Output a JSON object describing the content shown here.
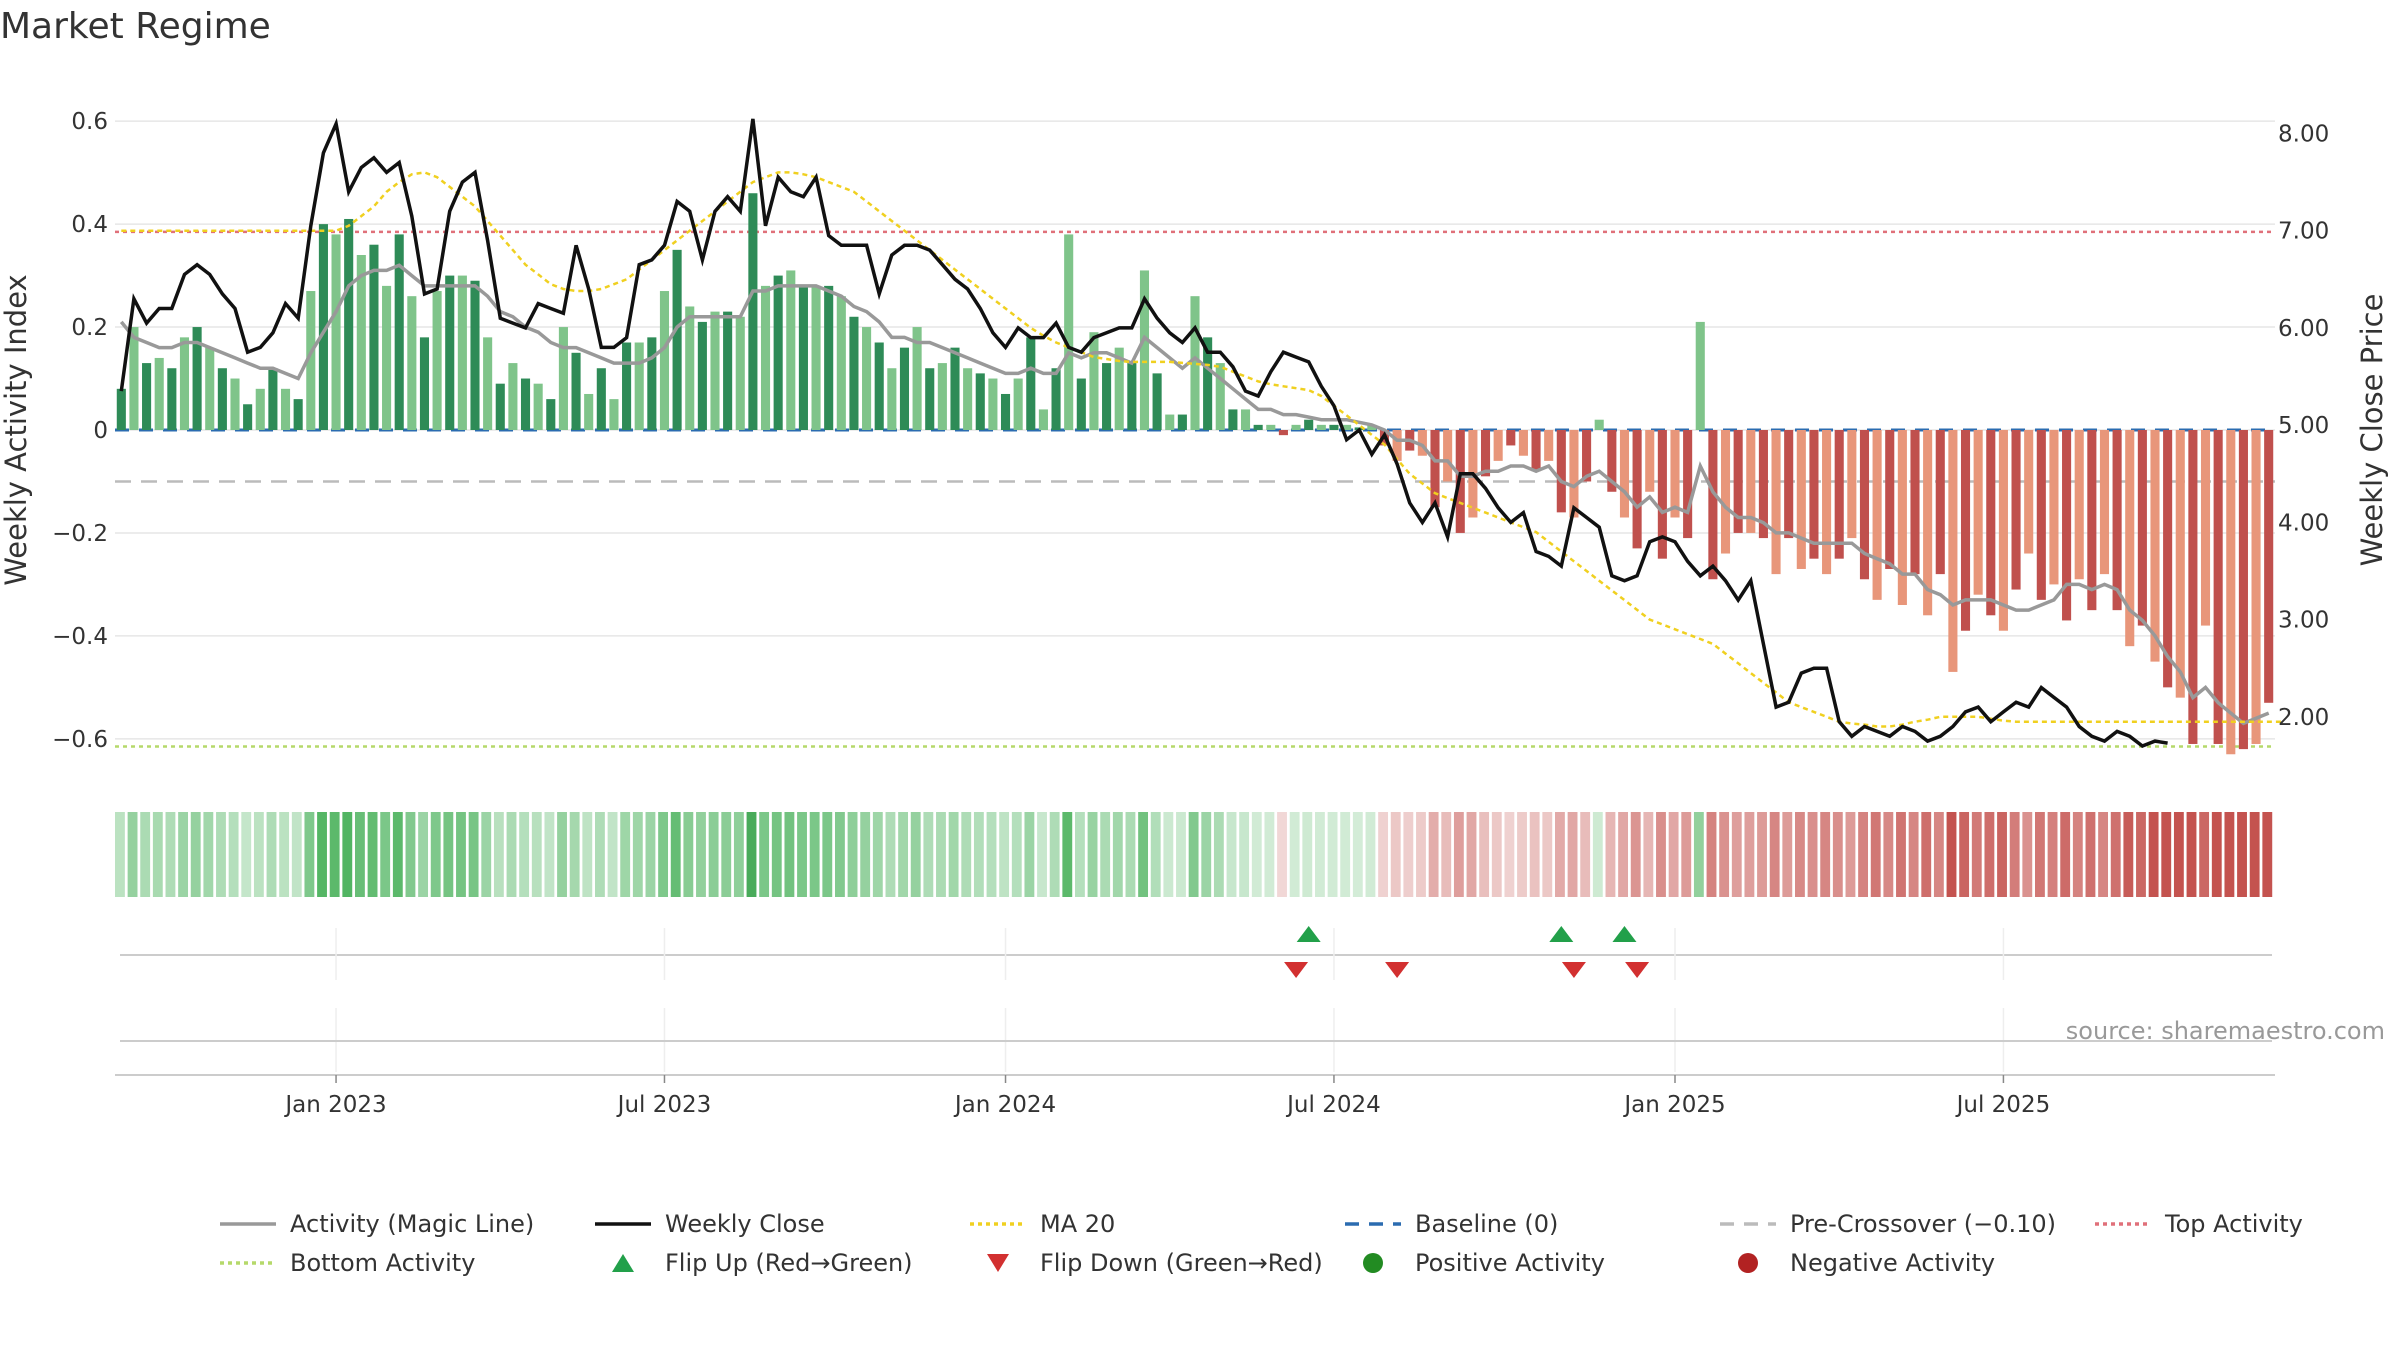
{
  "title": "Market Regime",
  "source": "source: sharemaestro.com",
  "colors": {
    "dark_green": "#2e8b57",
    "light_green": "#7fc48a",
    "dark_red": "#c0504d",
    "light_red": "#e8967a",
    "magic_line": "#999999",
    "close": "#111111",
    "ma20": "#f0d020",
    "baseline": "#2b6cb0",
    "precross": "#bbbbbb",
    "top": "#e0707a",
    "bottom": "#b5d96a",
    "flip_up": "#22a04a",
    "flip_down": "#d23030",
    "positive": "#228b22",
    "negative": "#b22222"
  },
  "chart_data": {
    "type": "bar",
    "title": "Market Regime",
    "ylabel_left": "Weekly Activity Index",
    "ylabel_right": "Weekly Close Price",
    "ylim_left": [
      -0.68,
      0.68
    ],
    "ylim_right": [
      1.35,
      8.55
    ],
    "left_ticks": [
      {
        "v": 0.6,
        "label": "0.6"
      },
      {
        "v": 0.4,
        "label": "0.4"
      },
      {
        "v": 0.2,
        "label": "0.2"
      },
      {
        "v": 0.0,
        "label": "0"
      },
      {
        "v": -0.2,
        "label": "−0.2"
      },
      {
        "v": -0.4,
        "label": "−0.4"
      },
      {
        "v": -0.6,
        "label": "−0.6"
      }
    ],
    "right_ticks": [
      "8.00",
      "7.00",
      "6.00",
      "5.00",
      "4.00",
      "3.00",
      "2.00"
    ],
    "x_ticks": [
      {
        "week": 17,
        "label": "Jan 2023"
      },
      {
        "week": 43,
        "label": "Jul 2023"
      },
      {
        "week": 70,
        "label": "Jan 2024"
      },
      {
        "week": 96,
        "label": "Jul 2024"
      },
      {
        "week": 123,
        "label": "Jan 2025"
      },
      {
        "week": 149,
        "label": "Jul 2025"
      }
    ],
    "reference_lines": {
      "top_activity": 0.385,
      "bottom_activity": -0.615,
      "pre_crossover": -0.1,
      "baseline": 0
    },
    "activity": [
      0.08,
      0.2,
      0.13,
      0.14,
      0.12,
      0.18,
      0.2,
      0.16,
      0.12,
      0.1,
      0.05,
      0.08,
      0.12,
      0.08,
      0.06,
      0.27,
      0.4,
      0.38,
      0.41,
      0.34,
      0.36,
      0.28,
      0.38,
      0.26,
      0.18,
      0.27,
      0.3,
      0.3,
      0.29,
      0.18,
      0.09,
      0.13,
      0.1,
      0.09,
      0.06,
      0.2,
      0.15,
      0.07,
      0.12,
      0.06,
      0.17,
      0.17,
      0.18,
      0.27,
      0.35,
      0.24,
      0.21,
      0.23,
      0.23,
      0.22,
      0.46,
      0.28,
      0.3,
      0.31,
      0.28,
      0.28,
      0.28,
      0.26,
      0.22,
      0.2,
      0.17,
      0.12,
      0.16,
      0.2,
      0.12,
      0.13,
      0.16,
      0.12,
      0.11,
      0.1,
      0.07,
      0.1,
      0.18,
      0.04,
      0.12,
      0.38,
      0.1,
      0.19,
      0.13,
      0.16,
      0.13,
      0.31,
      0.11,
      0.03,
      0.03,
      0.26,
      0.18,
      0.13,
      0.04,
      0.04,
      0.01,
      0.01,
      -0.01,
      0.01,
      0.02,
      0.01,
      0.01,
      0.01,
      0.005,
      0.01,
      -0.03,
      -0.06,
      -0.04,
      -0.05,
      -0.15,
      -0.1,
      -0.2,
      -0.17,
      -0.09,
      -0.06,
      -0.03,
      -0.05,
      -0.08,
      -0.06,
      -0.16,
      -0.17,
      -0.1,
      0.02,
      -0.12,
      -0.17,
      -0.23,
      -0.12,
      -0.25,
      -0.17,
      -0.21,
      0.21,
      -0.29,
      -0.24,
      -0.2,
      -0.2,
      -0.21,
      -0.28,
      -0.21,
      -0.27,
      -0.25,
      -0.28,
      -0.25,
      -0.21,
      -0.29,
      -0.33,
      -0.27,
      -0.34,
      -0.28,
      -0.36,
      -0.28,
      -0.47,
      -0.39,
      -0.32,
      -0.36,
      -0.39,
      -0.31,
      -0.24,
      -0.33,
      -0.3,
      -0.37,
      -0.29,
      -0.35,
      -0.28,
      -0.35,
      -0.42,
      -0.38,
      -0.45,
      -0.5,
      -0.52,
      -0.61,
      -0.38,
      -0.61,
      -0.63,
      -0.62,
      -0.61,
      -0.53
    ],
    "weekly_close": [
      5.35,
      6.3,
      6.05,
      6.2,
      6.2,
      6.55,
      6.65,
      6.55,
      6.35,
      6.2,
      5.75,
      5.8,
      5.95,
      6.25,
      6.1,
      7.05,
      7.8,
      8.1,
      7.4,
      7.65,
      7.75,
      7.6,
      7.7,
      7.15,
      6.35,
      6.4,
      7.2,
      7.5,
      7.6,
      6.9,
      6.1,
      6.05,
      6.0,
      6.25,
      6.2,
      6.15,
      6.85,
      6.4,
      5.8,
      5.8,
      5.9,
      6.65,
      6.7,
      6.85,
      7.3,
      7.2,
      6.7,
      7.2,
      7.35,
      7.2,
      8.15,
      7.05,
      7.55,
      7.4,
      7.35,
      7.55,
      6.95,
      6.85,
      6.85,
      6.85,
      6.35,
      6.75,
      6.85,
      6.85,
      6.8,
      6.65,
      6.5,
      6.4,
      6.2,
      5.95,
      5.8,
      6.0,
      5.9,
      5.9,
      6.05,
      5.8,
      5.75,
      5.9,
      5.95,
      6.0,
      6.0,
      6.3,
      6.1,
      5.95,
      5.85,
      6.0,
      5.75,
      5.75,
      5.6,
      5.35,
      5.3,
      5.55,
      5.75,
      5.7,
      5.65,
      5.4,
      5.2,
      4.85,
      4.95,
      4.7,
      4.9,
      4.6,
      4.2,
      4.0,
      4.2,
      3.85,
      4.5,
      4.5,
      4.35,
      4.15,
      4.0,
      4.1,
      3.7,
      3.65,
      3.55,
      4.15,
      4.05,
      3.95,
      3.45,
      3.4,
      3.45,
      3.8,
      3.85,
      3.8,
      3.6,
      3.45,
      3.55,
      3.4,
      3.2,
      3.4,
      2.75,
      2.1,
      2.15,
      2.45,
      2.5,
      2.5,
      1.95,
      1.8,
      1.9,
      1.85,
      1.8,
      1.9,
      1.85,
      1.75,
      1.8,
      1.9,
      2.05,
      2.1,
      1.95,
      2.05,
      2.15,
      2.1,
      2.3,
      2.2,
      2.1,
      1.9,
      1.8,
      1.75,
      1.85,
      1.8,
      1.7,
      1.75,
      1.73
    ],
    "magic_line": [
      0.21,
      0.18,
      0.17,
      0.16,
      0.16,
      0.17,
      0.17,
      0.16,
      0.15,
      0.14,
      0.13,
      0.12,
      0.12,
      0.11,
      0.1,
      0.15,
      0.19,
      0.23,
      0.28,
      0.3,
      0.31,
      0.31,
      0.32,
      0.3,
      0.28,
      0.28,
      0.28,
      0.28,
      0.28,
      0.26,
      0.23,
      0.22,
      0.2,
      0.19,
      0.17,
      0.16,
      0.16,
      0.15,
      0.14,
      0.13,
      0.13,
      0.13,
      0.14,
      0.16,
      0.2,
      0.22,
      0.22,
      0.22,
      0.22,
      0.22,
      0.27,
      0.27,
      0.28,
      0.28,
      0.28,
      0.28,
      0.27,
      0.26,
      0.24,
      0.23,
      0.21,
      0.18,
      0.18,
      0.17,
      0.17,
      0.16,
      0.15,
      0.14,
      0.13,
      0.12,
      0.11,
      0.11,
      0.12,
      0.11,
      0.11,
      0.15,
      0.14,
      0.15,
      0.15,
      0.14,
      0.13,
      0.18,
      0.16,
      0.14,
      0.12,
      0.14,
      0.12,
      0.1,
      0.08,
      0.06,
      0.04,
      0.04,
      0.03,
      0.03,
      0.025,
      0.02,
      0.02,
      0.02,
      0.015,
      0.01,
      0.0,
      -0.02,
      -0.02,
      -0.03,
      -0.06,
      -0.06,
      -0.09,
      -0.09,
      -0.08,
      -0.08,
      -0.07,
      -0.07,
      -0.08,
      -0.07,
      -0.1,
      -0.11,
      -0.09,
      -0.08,
      -0.1,
      -0.12,
      -0.15,
      -0.13,
      -0.16,
      -0.15,
      -0.16,
      -0.07,
      -0.12,
      -0.15,
      -0.17,
      -0.17,
      -0.18,
      -0.2,
      -0.2,
      -0.21,
      -0.22,
      -0.22,
      -0.22,
      -0.22,
      -0.24,
      -0.25,
      -0.26,
      -0.28,
      -0.28,
      -0.31,
      -0.32,
      -0.34,
      -0.33,
      -0.33,
      -0.33,
      -0.34,
      -0.35,
      -0.35,
      -0.34,
      -0.33,
      -0.3,
      -0.3,
      -0.31,
      -0.3,
      -0.31,
      -0.35,
      -0.37,
      -0.4,
      -0.44,
      -0.47,
      -0.52,
      -0.5,
      -0.53,
      -0.55,
      -0.57,
      -0.56,
      -0.55
    ],
    "ma20": [
      7.0,
      7.0,
      7.0,
      7.0,
      7.0,
      7.0,
      7.0,
      7.0,
      7.0,
      7.0,
      7.0,
      7.0,
      7.0,
      7.0,
      7.0,
      7.0,
      7.0,
      7.0,
      7.05,
      7.15,
      7.25,
      7.4,
      7.5,
      7.58,
      7.6,
      7.55,
      7.45,
      7.35,
      7.25,
      7.1,
      6.95,
      6.8,
      6.65,
      6.55,
      6.45,
      6.4,
      6.38,
      6.38,
      6.4,
      6.45,
      6.5,
      6.6,
      6.7,
      6.8,
      6.9,
      7.0,
      7.1,
      7.2,
      7.3,
      7.4,
      7.5,
      7.55,
      7.6,
      7.6,
      7.58,
      7.55,
      7.5,
      7.45,
      7.4,
      7.3,
      7.2,
      7.1,
      7.0,
      6.9,
      6.8,
      6.7,
      6.6,
      6.5,
      6.4,
      6.3,
      6.2,
      6.1,
      6.0,
      5.92,
      5.85,
      5.8,
      5.75,
      5.7,
      5.68,
      5.66,
      5.65,
      5.65,
      5.65,
      5.65,
      5.64,
      5.63,
      5.62,
      5.6,
      5.55,
      5.5,
      5.45,
      5.42,
      5.4,
      5.38,
      5.36,
      5.3,
      5.2,
      5.1,
      5.0,
      4.9,
      4.8,
      4.65,
      4.5,
      4.4,
      4.3,
      4.25,
      4.2,
      4.15,
      4.1,
      4.05,
      4.0,
      3.95,
      3.9,
      3.8,
      3.7,
      3.6,
      3.5,
      3.4,
      3.3,
      3.2,
      3.1,
      3.0,
      2.95,
      2.9,
      2.85,
      2.8,
      2.75,
      2.65,
      2.55,
      2.45,
      2.35,
      2.25,
      2.15,
      2.1,
      2.05,
      2.0,
      1.95,
      1.93,
      1.92,
      1.9,
      1.9,
      1.92,
      1.95,
      1.97,
      2.0,
      2.0,
      2.0,
      2.0,
      1.98,
      1.96,
      1.95,
      1.95,
      1.95,
      1.95,
      1.95,
      1.95,
      1.95,
      1.95,
      1.95,
      1.95,
      1.95,
      1.95,
      1.95,
      1.95,
      1.95,
      1.95,
      1.95,
      1.95,
      1.95,
      1.95,
      1.95,
      1.95
    ],
    "flip_up_weeks": [
      94,
      114,
      119
    ],
    "flip_down_weeks": [
      93,
      101,
      115,
      120
    ],
    "regime_strip": "activity-intensity heat strip (one cell per week)"
  },
  "legend": [
    {
      "label": "Activity (Magic Line)",
      "kind": "line",
      "color": "#999999",
      "dash": ""
    },
    {
      "label": "Weekly Close",
      "kind": "line",
      "color": "#111111",
      "dash": ""
    },
    {
      "label": "MA 20",
      "kind": "line",
      "color": "#f0d020",
      "dash": "4 4"
    },
    {
      "label": "Baseline (0)",
      "kind": "line",
      "color": "#2b6cb0",
      "dash": "14 10"
    },
    {
      "label": "Pre-Crossover (−0.10)",
      "kind": "line",
      "color": "#bbbbbb",
      "dash": "14 10"
    },
    {
      "label": "Top Activity",
      "kind": "line",
      "color": "#e0707a",
      "dash": "4 4"
    },
    {
      "label": "Bottom Activity",
      "kind": "line",
      "color": "#b5d96a",
      "dash": "4 4"
    },
    {
      "label": "Flip Up (Red→Green)",
      "kind": "tri-up",
      "color": "#22a04a",
      "dash": ""
    },
    {
      "label": "Flip Down (Green→Red)",
      "kind": "tri-down",
      "color": "#d23030",
      "dash": ""
    },
    {
      "label": "Positive Activity",
      "kind": "dot",
      "color": "#228b22",
      "dash": ""
    },
    {
      "label": "Negative Activity",
      "kind": "dot",
      "color": "#b22222",
      "dash": ""
    }
  ]
}
